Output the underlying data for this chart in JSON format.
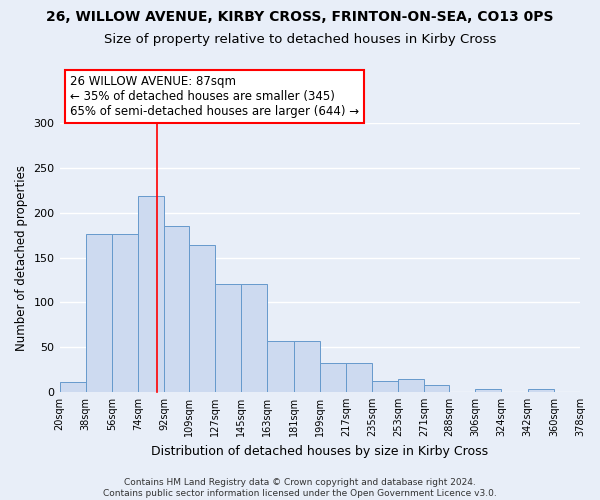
{
  "title": "26, WILLOW AVENUE, KIRBY CROSS, FRINTON-ON-SEA, CO13 0PS",
  "subtitle": "Size of property relative to detached houses in Kirby Cross",
  "xlabel": "Distribution of detached houses by size in Kirby Cross",
  "ylabel": "Number of detached properties",
  "bin_edges": [
    20,
    38,
    56,
    74,
    92,
    109,
    127,
    145,
    163,
    181,
    199,
    217,
    235,
    253,
    271,
    288,
    306,
    324,
    342,
    360,
    378
  ],
  "bar_heights": [
    11,
    176,
    176,
    219,
    185,
    164,
    120,
    120,
    57,
    57,
    32,
    32,
    12,
    14,
    8,
    0,
    3,
    0,
    3,
    0
  ],
  "bar_color": "#cddaf0",
  "bar_edge_color": "#6699cc",
  "bar_edge_width": 0.7,
  "background_color": "#e8eef8",
  "grid_color": "white",
  "red_line_x": 87,
  "annotation_text": "26 WILLOW AVENUE: 87sqm\n← 35% of detached houses are smaller (345)\n65% of semi-detached houses are larger (644) →",
  "annotation_box_color": "white",
  "annotation_box_edge": "red",
  "ylim": [
    0,
    300
  ],
  "tick_labels": [
    "20sqm",
    "38sqm",
    "56sqm",
    "74sqm",
    "92sqm",
    "109sqm",
    "127sqm",
    "145sqm",
    "163sqm",
    "181sqm",
    "199sqm",
    "217sqm",
    "235sqm",
    "253sqm",
    "271sqm",
    "288sqm",
    "306sqm",
    "324sqm",
    "342sqm",
    "360sqm",
    "378sqm"
  ],
  "footer_text": "Contains HM Land Registry data © Crown copyright and database right 2024.\nContains public sector information licensed under the Open Government Licence v3.0.",
  "title_fontsize": 10,
  "subtitle_fontsize": 9.5,
  "xlabel_fontsize": 9,
  "ylabel_fontsize": 8.5,
  "tick_fontsize": 7,
  "footer_fontsize": 6.5,
  "yticks": [
    0,
    50,
    100,
    150,
    200,
    250,
    300
  ]
}
